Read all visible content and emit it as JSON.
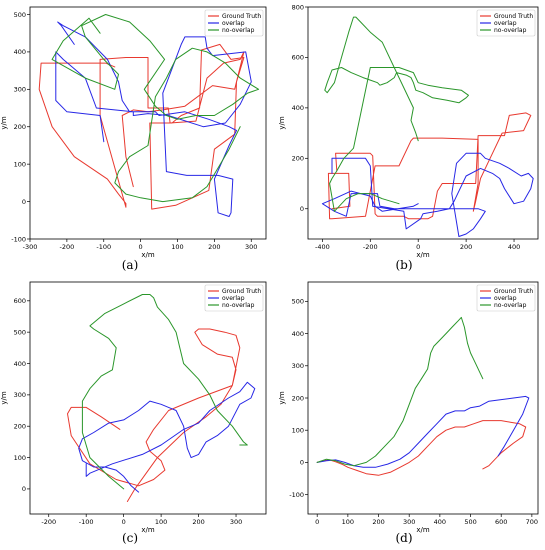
{
  "colors": {
    "ground_truth": "#e8392f",
    "overlap": "#2727e6",
    "no_overlap": "#2a962a"
  },
  "chart_data": [
    {
      "type": "line",
      "caption": "(a)",
      "xlabel": "x/m",
      "ylabel": "y/m",
      "xlim": [
        -300,
        340
      ],
      "ylim": [
        -100,
        520
      ],
      "xticks": [
        -300,
        -200,
        -100,
        0,
        100,
        200,
        300
      ],
      "yticks": [
        -100,
        0,
        100,
        200,
        300,
        400,
        500
      ],
      "legend_position": "top-right",
      "series": [
        {
          "name": "Ground Truth",
          "color_key": "ground_truth",
          "x": [
            -70,
            -95,
            -195,
            -270,
            -275,
            -240,
            -180,
            -90,
            -60,
            -40,
            -40,
            -110,
            -110,
            -40,
            20,
            20,
            75,
            80,
            150,
            180,
            225,
            270,
            280,
            260,
            255,
            200,
            185,
            95,
            30,
            25,
            85,
            110,
            160,
            165,
            215,
            245,
            280,
            260,
            255,
            195,
            120,
            60,
            20,
            -20,
            -50,
            -40,
            -20
          ],
          "y": [
            360,
            370,
            370,
            370,
            300,
            200,
            120,
            60,
            20,
            -5,
            -15,
            230,
            380,
            385,
            385,
            250,
            250,
            210,
            215,
            330,
            370,
            380,
            400,
            320,
            180,
            140,
            30,
            -10,
            -20,
            210,
            210,
            230,
            250,
            405,
            420,
            380,
            385,
            320,
            300,
            310,
            255,
            245,
            240,
            245,
            230,
            120,
            40
          ]
        },
        {
          "name": "overlap",
          "color_key": "overlap",
          "x": [
            -180,
            -215,
            -225,
            -210,
            -150,
            -90,
            -60,
            -50,
            -30,
            40,
            50,
            120,
            185,
            240,
            260,
            240,
            200,
            210,
            240,
            245,
            250,
            210,
            125,
            70,
            60,
            110,
            120,
            175,
            180,
            195,
            285,
            300,
            270,
            230,
            170,
            75,
            20,
            -20,
            -20,
            -120,
            -150,
            -210,
            -230,
            -230,
            -200,
            -110,
            -100
          ],
          "y": [
            420,
            470,
            480,
            470,
            440,
            380,
            320,
            270,
            240,
            240,
            230,
            240,
            220,
            200,
            190,
            150,
            60,
            -30,
            -40,
            -30,
            60,
            70,
            70,
            80,
            290,
            420,
            440,
            440,
            410,
            390,
            400,
            320,
            260,
            210,
            200,
            230,
            235,
            230,
            240,
            250,
            330,
            380,
            400,
            270,
            240,
            230,
            160
          ]
        },
        {
          "name": "no-overlap",
          "color_key": "no_overlap",
          "x": [
            -110,
            -140,
            -210,
            -240,
            -150,
            -70,
            -60,
            -100,
            -150,
            -160,
            -95,
            -30,
            25,
            65,
            10,
            40,
            70,
            100,
            150,
            200,
            250,
            290,
            320,
            270,
            230,
            180,
            140,
            95,
            70,
            40,
            20,
            -30,
            -60,
            -70,
            -40,
            0,
            60,
            140,
            180,
            210,
            240,
            270
          ],
          "y": [
            450,
            490,
            430,
            380,
            330,
            300,
            340,
            380,
            440,
            470,
            500,
            480,
            430,
            380,
            300,
            255,
            230,
            220,
            230,
            230,
            260,
            290,
            300,
            330,
            370,
            400,
            410,
            380,
            330,
            280,
            150,
            120,
            80,
            50,
            20,
            10,
            0,
            10,
            40,
            90,
            140,
            200
          ]
        }
      ]
    },
    {
      "type": "line",
      "caption": "(b)",
      "xlabel": "x/m",
      "ylabel": "y/m",
      "xlim": [
        -460,
        500
      ],
      "ylim": [
        -120,
        800
      ],
      "xticks": [
        -400,
        -200,
        0,
        200,
        400
      ],
      "yticks": [
        0,
        200,
        400,
        600,
        800
      ],
      "legend_position": "top-right",
      "series": [
        {
          "name": "Ground Truth",
          "color_key": "ground_truth",
          "x": [
            -340,
            -345,
            -200,
            -190,
            -180,
            -170,
            -60,
            -40,
            0,
            40,
            60,
            80,
            100,
            240,
            250,
            360,
            380,
            450,
            470,
            440,
            350,
            300,
            260,
            240,
            230,
            250,
            250,
            100,
            60,
            -20,
            -30,
            -80,
            -180,
            -220,
            -360,
            -370,
            -375,
            -290,
            -285,
            -360
          ],
          "y": [
            150,
            220,
            220,
            210,
            -20,
            -30,
            -30,
            -40,
            -40,
            -40,
            -30,
            70,
            100,
            100,
            290,
            290,
            370,
            380,
            370,
            310,
            300,
            200,
            120,
            30,
            -10,
            100,
            275,
            280,
            280,
            280,
            270,
            170,
            170,
            -30,
            -40,
            -40,
            140,
            140,
            10,
            0
          ]
        },
        {
          "name": "overlap",
          "color_key": "overlap",
          "x": [
            -360,
            -360,
            -220,
            -200,
            -190,
            -60,
            -50,
            10,
            20,
            80,
            130,
            150,
            200,
            260,
            310,
            340,
            360,
            400,
            440,
            470,
            480,
            460,
            430,
            380,
            340,
            280,
            260,
            200,
            160,
            140,
            170,
            200,
            230,
            260,
            280,
            250,
            -100,
            -160,
            -170,
            -280,
            -300,
            -350,
            -400,
            -350,
            -280,
            -200,
            -180,
            -150,
            -20,
            0
          ],
          "y": [
            140,
            200,
            200,
            170,
            10,
            -10,
            -80,
            -40,
            -20,
            -10,
            0,
            30,
            130,
            160,
            140,
            120,
            80,
            20,
            30,
            80,
            120,
            140,
            130,
            160,
            180,
            200,
            220,
            220,
            180,
            60,
            -110,
            -100,
            -80,
            -40,
            -10,
            0,
            0,
            10,
            60,
            60,
            -30,
            -10,
            20,
            40,
            70,
            50,
            10,
            -10,
            10,
            20
          ]
        },
        {
          "name": "no-overlap",
          "color_key": "no_overlap",
          "x": [
            0,
            -10,
            -30,
            -20,
            -80,
            -150,
            -200,
            -240,
            -260,
            -270,
            -290,
            -320,
            -350,
            -380,
            -390,
            -380,
            -360,
            -320,
            -280,
            -230,
            -200,
            -170,
            -160,
            -130,
            -100,
            -90,
            -50,
            -30,
            -20,
            -10,
            20,
            60,
            120,
            170,
            200,
            210,
            180,
            100,
            40,
            0,
            -20,
            -80,
            -200,
            -270,
            -310,
            -340,
            -360,
            -370,
            -350,
            -300,
            -250,
            -200,
            -150,
            -80
          ],
          "y": [
            270,
            300,
            350,
            400,
            520,
            660,
            700,
            740,
            760,
            760,
            700,
            600,
            500,
            460,
            470,
            500,
            550,
            560,
            540,
            520,
            510,
            500,
            490,
            500,
            520,
            540,
            530,
            520,
            500,
            470,
            460,
            440,
            430,
            420,
            440,
            450,
            470,
            480,
            490,
            500,
            540,
            560,
            560,
            240,
            200,
            150,
            120,
            100,
            -10,
            40,
            60,
            60,
            40,
            20
          ]
        }
      ]
    },
    {
      "type": "line",
      "caption": "(c)",
      "xlabel": "x/m",
      "ylabel": "y/m",
      "xlim": [
        -250,
        380
      ],
      "ylim": [
        -80,
        660
      ],
      "xticks": [
        -200,
        -100,
        0,
        100,
        200,
        300
      ],
      "yticks": [
        0,
        100,
        200,
        300,
        400,
        500,
        600
      ],
      "legend_position": "top-right",
      "series": [
        {
          "name": "Ground Truth",
          "color_key": "ground_truth",
          "x": [
            10,
            30,
            90,
            160,
            220,
            260,
            290,
            300,
            290,
            250,
            210,
            190,
            200,
            230,
            270,
            300,
            310,
            290,
            200,
            120,
            80,
            60,
            70,
            100,
            110,
            80,
            40,
            -20,
            -90,
            -140,
            -150,
            -140,
            -100,
            -60,
            -10
          ],
          "y": [
            -40,
            0,
            100,
            180,
            230,
            270,
            330,
            380,
            420,
            430,
            460,
            500,
            510,
            510,
            500,
            490,
            450,
            330,
            290,
            250,
            190,
            150,
            120,
            90,
            60,
            30,
            10,
            30,
            80,
            170,
            240,
            260,
            260,
            230,
            190
          ]
        },
        {
          "name": "overlap",
          "color_key": "overlap",
          "x": [
            -100,
            -100,
            -90,
            -30,
            50,
            100,
            160,
            200,
            230,
            280,
            310,
            330,
            350,
            340,
            310,
            280,
            250,
            220,
            200,
            180,
            170,
            160,
            140,
            120,
            100,
            70,
            40,
            0,
            -40,
            -80,
            -110,
            -120,
            -110,
            -80,
            -50,
            -20,
            0,
            20,
            40
          ],
          "y": [
            80,
            40,
            50,
            80,
            110,
            140,
            190,
            210,
            250,
            290,
            310,
            340,
            320,
            290,
            270,
            200,
            170,
            150,
            110,
            100,
            130,
            200,
            250,
            260,
            270,
            280,
            250,
            220,
            210,
            180,
            160,
            130,
            90,
            70,
            70,
            60,
            40,
            10,
            -10
          ]
        },
        {
          "name": "no-overlap",
          "color_key": "no_overlap",
          "x": [
            0,
            -40,
            -90,
            -110,
            -110,
            -90,
            -60,
            -30,
            -20,
            -40,
            -80,
            -90,
            -50,
            0,
            50,
            70,
            80,
            90,
            120,
            140,
            150,
            160,
            200,
            230,
            250,
            290,
            320,
            330,
            310
          ],
          "y": [
            0,
            40,
            100,
            180,
            280,
            320,
            360,
            380,
            450,
            480,
            510,
            520,
            560,
            590,
            620,
            620,
            610,
            580,
            540,
            500,
            450,
            400,
            350,
            300,
            250,
            200,
            150,
            140,
            140
          ]
        }
      ]
    },
    {
      "type": "line",
      "caption": "(d)",
      "xlabel": "x/m",
      "ylabel": "y/m",
      "xlim": [
        -30,
        720
      ],
      "ylim": [
        -160,
        560
      ],
      "xticks": [
        0,
        100,
        200,
        300,
        400,
        500,
        600,
        700
      ],
      "yticks": [
        -100,
        0,
        100,
        200,
        300,
        400,
        500
      ],
      "legend_position": "top-right",
      "series": [
        {
          "name": "Ground Truth",
          "color_key": "ground_truth",
          "x": [
            0,
            20,
            40,
            60,
            80,
            100,
            130,
            160,
            200,
            240,
            270,
            300,
            330,
            360,
            390,
            420,
            450,
            480,
            510,
            540,
            570,
            600,
            630,
            660,
            680,
            670,
            640,
            600,
            580,
            560,
            540
          ],
          "y": [
            0,
            5,
            8,
            2,
            -5,
            -15,
            -25,
            -35,
            -40,
            -30,
            -15,
            0,
            20,
            50,
            80,
            100,
            110,
            110,
            120,
            130,
            130,
            130,
            125,
            120,
            110,
            80,
            60,
            30,
            10,
            -10,
            -20
          ]
        },
        {
          "name": "overlap",
          "color_key": "overlap",
          "x": [
            0,
            30,
            60,
            90,
            120,
            150,
            190,
            230,
            270,
            300,
            330,
            360,
            390,
            420,
            450,
            480,
            500,
            530,
            560,
            600,
            640,
            680,
            690,
            670,
            640,
            610,
            590
          ],
          "y": [
            0,
            5,
            8,
            0,
            -10,
            -15,
            -15,
            -5,
            10,
            30,
            60,
            90,
            120,
            150,
            160,
            160,
            170,
            175,
            190,
            195,
            200,
            205,
            200,
            150,
            100,
            50,
            20
          ]
        },
        {
          "name": "no-overlap",
          "color_key": "no_overlap",
          "x": [
            0,
            30,
            60,
            90,
            120,
            160,
            190,
            220,
            250,
            280,
            300,
            320,
            340,
            360,
            370,
            380,
            400,
            420,
            440,
            460,
            470,
            480,
            490,
            500,
            510,
            520,
            530,
            540
          ],
          "y": [
            0,
            10,
            5,
            -5,
            -10,
            0,
            20,
            50,
            80,
            130,
            180,
            230,
            260,
            290,
            340,
            360,
            380,
            400,
            420,
            440,
            450,
            420,
            370,
            340,
            320,
            300,
            280,
            260
          ]
        }
      ]
    }
  ]
}
